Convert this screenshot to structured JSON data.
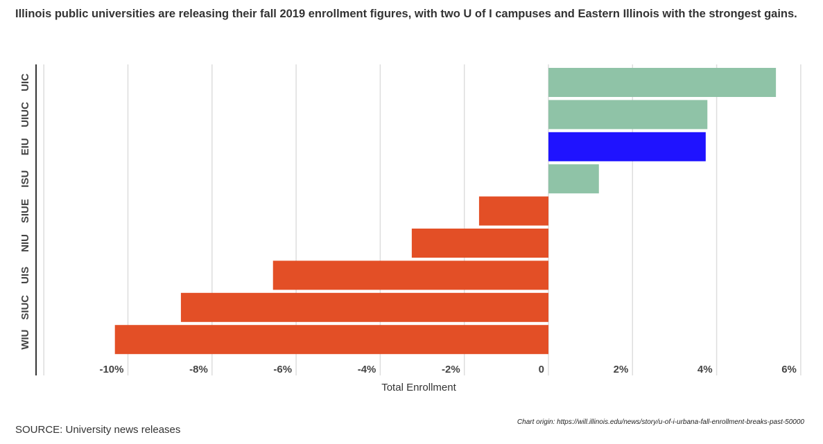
{
  "headline": "Illinois public universities are releasing their fall 2019 enrollment figures, with two U of I campuses and Eastern Illinois with the strongest gains.",
  "source": "SOURCE: University news releases",
  "origin": "Chart origin: https://will.illinois.edu/news/story/u-of-i-urbana-fall-enrollment-breaks-past-50000",
  "chart_data": {
    "type": "bar",
    "orientation": "horizontal",
    "categories": [
      "UIC",
      "UIUC",
      "EIU",
      "ISU",
      "SIUE",
      "NIU",
      "UIS",
      "SIUC",
      "WIU"
    ],
    "values": [
      5.41,
      3.78,
      3.74,
      1.2,
      -1.65,
      -3.25,
      -6.55,
      -8.74,
      -10.31
    ],
    "colors": [
      "#8fc3a7",
      "#8fc3a7",
      "#1f13ff",
      "#8fc3a7",
      "#e34f26",
      "#e34f26",
      "#e34f26",
      "#e34f26",
      "#e34f26"
    ],
    "xlabel": "Total Enrollment",
    "xlim": [
      -12,
      6
    ],
    "xticks": [
      -10,
      -8,
      -6,
      -4,
      -2,
      0,
      2,
      4,
      6
    ],
    "xtick_labels": [
      "-10%",
      "-8%",
      "-6%",
      "-4%",
      "-2%",
      "0",
      "2%",
      "4%",
      "6%"
    ],
    "grid": true
  }
}
